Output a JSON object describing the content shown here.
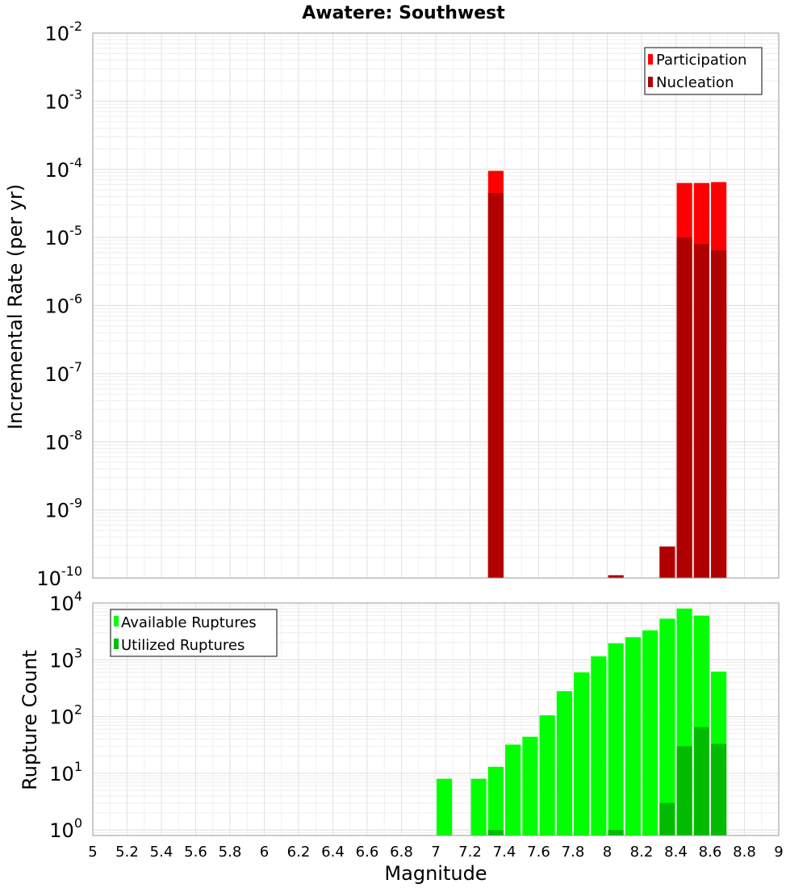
{
  "chart_data": [
    {
      "type": "bar",
      "title": "Awatere: Southwest",
      "ylabel": "Incremental Rate (per yr)",
      "xlabel": "",
      "xlim": [
        5,
        9
      ],
      "ylim": [
        1e-10,
        0.01
      ],
      "yscale": "log",
      "y_tick_exponents": [
        "-2",
        "-3",
        "-4",
        "-5",
        "-6",
        "-7",
        "-8",
        "-9",
        "-10"
      ],
      "grid": true,
      "legend_position": "top-right",
      "bar_width": 0.09,
      "series": [
        {
          "name": "Participation",
          "color": "#ff0000",
          "x": [
            7.35,
            8.05,
            8.35,
            8.45,
            8.55,
            8.65
          ],
          "values": [
            9.5e-05,
            1.1e-10,
            2.9e-10,
            6.3e-05,
            6.3e-05,
            6.5e-05
          ]
        },
        {
          "name": "Nucleation",
          "color": "#b00000",
          "x": [
            7.35,
            8.05,
            8.35,
            8.45,
            8.55,
            8.65
          ],
          "values": [
            4.5e-05,
            1.1e-10,
            2.9e-10,
            1e-05,
            8e-06,
            6.5e-06
          ]
        }
      ]
    },
    {
      "type": "bar",
      "title": "",
      "ylabel": "Rupture Count",
      "xlabel": "Magnitude",
      "xlim": [
        5,
        9
      ],
      "x_tick_labels": [
        "5",
        "5.2",
        "5.4",
        "5.6",
        "5.8",
        "6",
        "6.2",
        "6.4",
        "6.6",
        "6.8",
        "7",
        "7.2",
        "7.4",
        "7.6",
        "7.8",
        "8",
        "8.2",
        "8.4",
        "8.6",
        "8.8",
        "9"
      ],
      "ylim": [
        0.8,
        10000
      ],
      "yscale": "log",
      "y_tick_exponents": [
        "4",
        "3",
        "2",
        "1",
        "0"
      ],
      "grid": true,
      "legend_position": "top-left",
      "bar_width": 0.09,
      "series": [
        {
          "name": "Available Ruptures",
          "color": "#00ff00",
          "x": [
            7.05,
            7.25,
            7.35,
            7.45,
            7.55,
            7.65,
            7.75,
            7.85,
            7.95,
            8.05,
            8.15,
            8.25,
            8.35,
            8.45,
            8.55,
            8.65
          ],
          "values": [
            8,
            8,
            13,
            32,
            44,
            105,
            280,
            600,
            1150,
            1950,
            2500,
            3300,
            5300,
            8000,
            6000,
            620
          ]
        },
        {
          "name": "Utilized Ruptures",
          "color": "#00bb00",
          "x": [
            7.35,
            8.05,
            8.35,
            8.45,
            8.55,
            8.65
          ],
          "values": [
            1,
            1,
            3,
            30,
            65,
            33
          ]
        }
      ]
    }
  ]
}
